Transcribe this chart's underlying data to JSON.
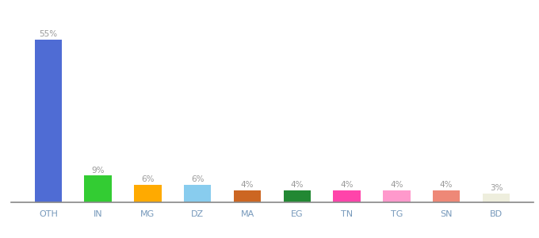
{
  "categories": [
    "OTH",
    "IN",
    "MG",
    "DZ",
    "MA",
    "EG",
    "TN",
    "TG",
    "SN",
    "BD"
  ],
  "values": [
    55,
    9,
    6,
    6,
    4,
    4,
    4,
    4,
    4,
    3
  ],
  "bar_colors": [
    "#4f6cd4",
    "#33cc33",
    "#ffaa00",
    "#88ccee",
    "#cc6622",
    "#228833",
    "#ff44aa",
    "#ff99cc",
    "#ee8877",
    "#eeeedd"
  ],
  "ylim": [
    0,
    62
  ],
  "label_color": "#999999",
  "xtick_color": "#7799bb",
  "background_color": "#ffffff",
  "bar_width": 0.55
}
